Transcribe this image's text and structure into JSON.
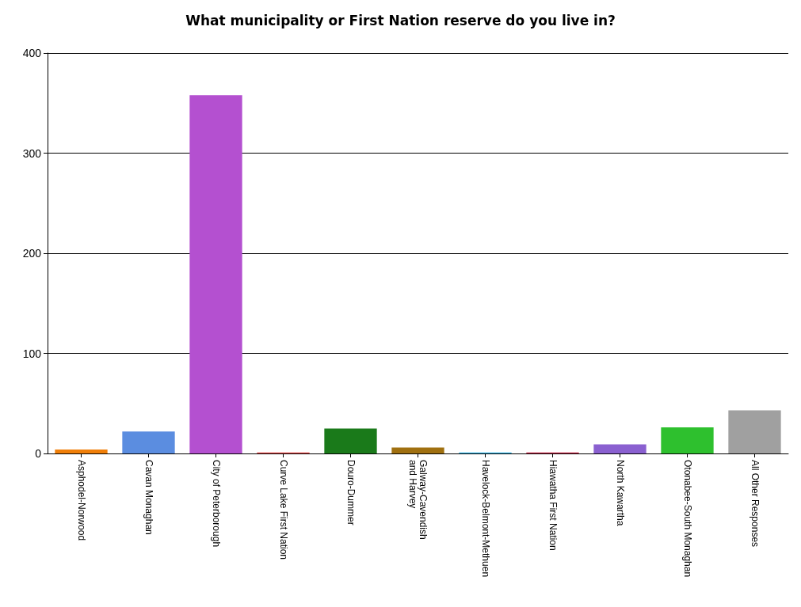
{
  "chart_data": {
    "type": "bar",
    "title": "What municipality or First Nation reserve do you live in?",
    "categories": [
      "Asphodel-Norwood",
      "Cavan Monaghan",
      "City of Peterborough",
      "Curve Lake First Nation",
      "Douro-Dummer",
      "Galway-Cavendish\nand Harvey",
      "Havelock-Belmont-Methuen",
      "Hiawatha First Nation",
      "North Kawartha",
      "Otonabee-South Monaghan",
      "All Other Responses"
    ],
    "values": [
      4,
      22,
      358,
      1,
      25,
      6,
      1,
      1,
      9,
      26,
      43
    ],
    "colors": [
      "#f07f09",
      "#5b8de0",
      "#b450d0",
      "#e04040",
      "#1a7a1a",
      "#a07010",
      "#30b0e0",
      "#c02040",
      "#8a60d0",
      "#2ec02e",
      "#a0a0a0"
    ],
    "ylim": [
      0,
      400
    ],
    "yticks": [
      0,
      100,
      200,
      300,
      400
    ],
    "grid": "y"
  }
}
